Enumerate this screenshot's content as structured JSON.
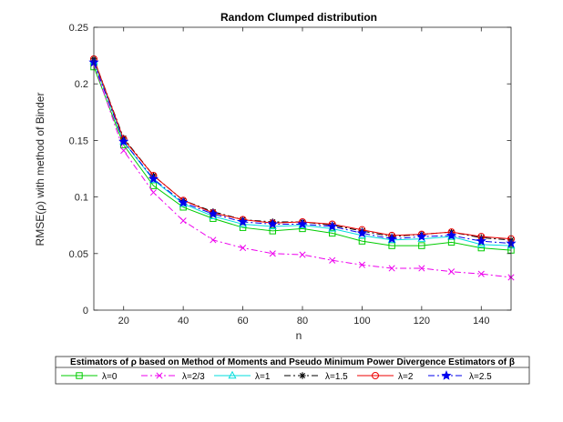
{
  "chart_data": {
    "type": "line",
    "title": "Random Clumped distribution",
    "xlabel": "n",
    "ylabel": "RMSE(ρ) with method of Binder",
    "xlim": [
      10,
      150
    ],
    "ylim": [
      0,
      0.25
    ],
    "xticks": [
      20,
      40,
      60,
      80,
      100,
      120,
      140
    ],
    "yticks": [
      0,
      0.05,
      0.1,
      0.15,
      0.2,
      0.25
    ],
    "ytick_labels": [
      "0",
      "0.05",
      "0.1",
      "0.15",
      "0.2",
      "0.25"
    ],
    "grid": false,
    "x": [
      10,
      20,
      30,
      40,
      50,
      60,
      70,
      80,
      90,
      100,
      110,
      120,
      130,
      140,
      150
    ],
    "legend_title": "Estimators of ρ based on Method of Moments and Pseudo Minimum Power Divergence Estimators of  β",
    "legend_position": "bottom-outside",
    "series": [
      {
        "name": "λ=0",
        "color": "#00cc00",
        "marker": "square",
        "dash": "solid",
        "values": [
          0.215,
          0.146,
          0.11,
          0.091,
          0.081,
          0.073,
          0.07,
          0.072,
          0.068,
          0.061,
          0.057,
          0.057,
          0.06,
          0.055,
          0.053
        ]
      },
      {
        "name": "λ=2/3",
        "color": "#ee00ee",
        "marker": "x",
        "dash": "dashdot",
        "values": [
          0.218,
          0.141,
          0.104,
          0.079,
          0.062,
          0.055,
          0.05,
          0.049,
          0.044,
          0.04,
          0.037,
          0.037,
          0.034,
          0.032,
          0.029
        ]
      },
      {
        "name": "λ=1",
        "color": "#00dddd",
        "marker": "triangle",
        "dash": "solid",
        "values": [
          0.22,
          0.149,
          0.115,
          0.094,
          0.083,
          0.076,
          0.074,
          0.075,
          0.072,
          0.066,
          0.062,
          0.063,
          0.065,
          0.058,
          0.057
        ]
      },
      {
        "name": "λ=1.5",
        "color": "#000000",
        "marker": "asterisk",
        "dash": "dashdot",
        "values": [
          0.222,
          0.152,
          0.119,
          0.097,
          0.087,
          0.08,
          0.078,
          0.078,
          0.075,
          0.07,
          0.065,
          0.067,
          0.069,
          0.064,
          0.062
        ]
      },
      {
        "name": "λ=2",
        "color": "#ee0000",
        "marker": "circle",
        "dash": "solid",
        "values": [
          0.222,
          0.151,
          0.119,
          0.097,
          0.086,
          0.08,
          0.077,
          0.078,
          0.076,
          0.071,
          0.066,
          0.067,
          0.069,
          0.065,
          0.063
        ]
      },
      {
        "name": "λ=2.5",
        "color": "#0000ee",
        "marker": "star",
        "dash": "dashdot",
        "values": [
          0.219,
          0.149,
          0.116,
          0.095,
          0.085,
          0.078,
          0.076,
          0.076,
          0.074,
          0.068,
          0.063,
          0.065,
          0.066,
          0.061,
          0.059
        ]
      }
    ]
  }
}
